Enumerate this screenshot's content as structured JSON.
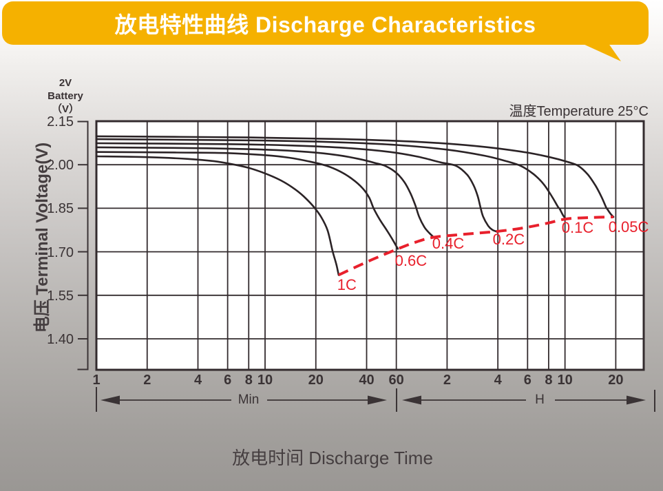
{
  "banner": {
    "title": "放电特性曲线 Discharge Characteristics",
    "bg_color": "#F5B100",
    "text_color": "#FFFFFF"
  },
  "chart": {
    "battery_note_lines": [
      "2V",
      "Battery",
      "（V）"
    ],
    "temperature_note": "温度Temperature 25°C",
    "y_axis_title": "电压 Terminal Voltage(V)",
    "x_axis_title": "放电时间 Discharge Time",
    "x_range_min_label": "Min",
    "x_range_h_label": "H"
  },
  "chart_data": {
    "type": "line",
    "title": "放电特性曲线 Discharge Characteristics",
    "xlabel": "放电时间 Discharge Time",
    "ylabel": "电压 Terminal Voltage(V)",
    "x_scale": "log",
    "x_unit_left": "Min",
    "x_unit_right": "H",
    "x_ticks_min": [
      1,
      2,
      4,
      6,
      8,
      10,
      20,
      40,
      60
    ],
    "x_ticks_h": [
      2,
      4,
      6,
      8,
      10,
      20
    ],
    "y_tick_labels": [
      "2.15",
      "2.00",
      "1.85",
      "1.70",
      "1.55",
      "1.40"
    ],
    "ylim": [
      1.29,
      2.15
    ],
    "xlim_minutes": [
      1,
      1760
    ],
    "grid": true,
    "temperature": "25°C",
    "line_color": "#2b2326",
    "cutoff_color": "#E8202C",
    "series": [
      {
        "name": "0.05C",
        "points": [
          [
            1,
            2.098
          ],
          [
            8,
            2.094
          ],
          [
            30,
            2.088
          ],
          [
            80,
            2.079
          ],
          [
            180,
            2.064
          ],
          [
            330,
            2.045
          ],
          [
            480,
            2.027
          ],
          [
            620,
            2.01
          ],
          [
            720,
            1.996
          ],
          [
            820,
            1.966
          ],
          [
            910,
            1.928
          ],
          [
            990,
            1.888
          ],
          [
            1050,
            1.854
          ],
          [
            1075,
            1.845
          ],
          [
            1120,
            1.83
          ],
          [
            1163,
            1.82
          ]
        ]
      },
      {
        "name": "0.1C",
        "points": [
          [
            1,
            2.088
          ],
          [
            8,
            2.084
          ],
          [
            25,
            2.078
          ],
          [
            60,
            2.068
          ],
          [
            120,
            2.052
          ],
          [
            200,
            2.031
          ],
          [
            270,
            2.012
          ],
          [
            328,
            1.996
          ],
          [
            390,
            1.968
          ],
          [
            450,
            1.932
          ],
          [
            505,
            1.888
          ],
          [
            545,
            1.855
          ],
          [
            558,
            1.848
          ],
          [
            585,
            1.825
          ],
          [
            608,
            1.813
          ]
        ]
      },
      {
        "name": "0.2C",
        "points": [
          [
            1,
            2.074
          ],
          [
            6,
            2.071
          ],
          [
            15,
            2.066
          ],
          [
            30,
            2.058
          ],
          [
            55,
            2.044
          ],
          [
            80,
            2.028
          ],
          [
            110,
            2.008
          ],
          [
            136,
            1.996
          ],
          [
            158,
            1.965
          ],
          [
            172,
            1.93
          ],
          [
            182,
            1.893
          ],
          [
            189,
            1.855
          ],
          [
            196,
            1.822
          ],
          [
            210,
            1.79
          ],
          [
            222,
            1.776
          ],
          [
            235,
            1.77
          ]
        ]
      },
      {
        "name": "0.4C",
        "points": [
          [
            1,
            2.06
          ],
          [
            4,
            2.057
          ],
          [
            10,
            2.052
          ],
          [
            18,
            2.044
          ],
          [
            27,
            2.033
          ],
          [
            36,
            2.02
          ],
          [
            45,
            2.006
          ],
          [
            52,
            1.995
          ],
          [
            60,
            1.972
          ],
          [
            67,
            1.94
          ],
          [
            73,
            1.9
          ],
          [
            78,
            1.858
          ],
          [
            82,
            1.82
          ],
          [
            88,
            1.785
          ],
          [
            94,
            1.765
          ],
          [
            100,
            1.75
          ]
        ]
      },
      {
        "name": "0.6C",
        "points": [
          [
            1,
            2.044
          ],
          [
            3,
            2.042
          ],
          [
            6,
            2.04
          ],
          [
            10,
            2.033
          ],
          [
            14,
            2.024
          ],
          [
            18,
            2.012
          ],
          [
            23,
            1.997
          ],
          [
            28,
            1.976
          ],
          [
            33,
            1.95
          ],
          [
            38,
            1.918
          ],
          [
            41.5,
            1.886
          ],
          [
            44,
            1.85
          ],
          [
            48,
            1.81
          ],
          [
            53,
            1.772
          ],
          [
            57,
            1.742
          ],
          [
            61.3,
            1.71
          ]
        ]
      },
      {
        "name": "1C",
        "points": [
          [
            1,
            2.029
          ],
          [
            2,
            2.026
          ],
          [
            3.5,
            2.02
          ],
          [
            5,
            2.012
          ],
          [
            6.5,
            2.001
          ],
          [
            8,
            1.989
          ],
          [
            10,
            1.97
          ],
          [
            12.5,
            1.945
          ],
          [
            15,
            1.916
          ],
          [
            17,
            1.89
          ],
          [
            19.3,
            1.857
          ],
          [
            21.5,
            1.82
          ],
          [
            23.5,
            1.773
          ],
          [
            25.2,
            1.7
          ],
          [
            26.5,
            1.655
          ],
          [
            27.3,
            1.62
          ]
        ]
      }
    ],
    "cutoff_line": {
      "name": "discharge-end-voltage",
      "points": [
        [
          27.3,
          1.62
        ],
        [
          42,
          1.67
        ],
        [
          61.3,
          1.71
        ],
        [
          78,
          1.733
        ],
        [
          100,
          1.75
        ],
        [
          150,
          1.76
        ],
        [
          235,
          1.77
        ],
        [
          330,
          1.781
        ],
        [
          460,
          1.797
        ],
        [
          608,
          1.813
        ],
        [
          850,
          1.818
        ],
        [
          1163,
          1.82
        ]
      ]
    }
  }
}
